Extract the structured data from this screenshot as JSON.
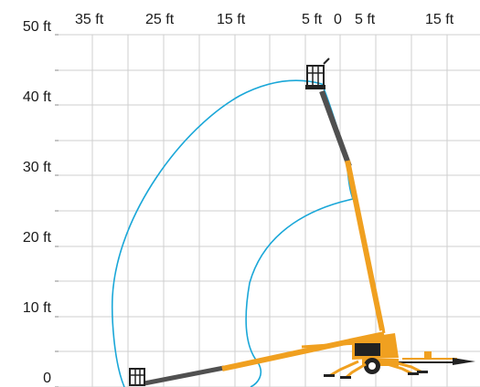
{
  "grid": {
    "x_tick_labels": [
      "35 ft",
      "25 ft",
      "15 ft",
      "5 ft",
      "0",
      "5 ft",
      "15 ft"
    ],
    "y_tick_labels": [
      "50 ft",
      "40 ft",
      "30 ft",
      "20 ft",
      "10 ft",
      "0"
    ]
  },
  "colors": {
    "grid": "#cfcfcf",
    "envelope": "#1aa7d8",
    "boom": "#f0a020",
    "boom_dark": "#505050",
    "chassis": "#222222"
  }
}
